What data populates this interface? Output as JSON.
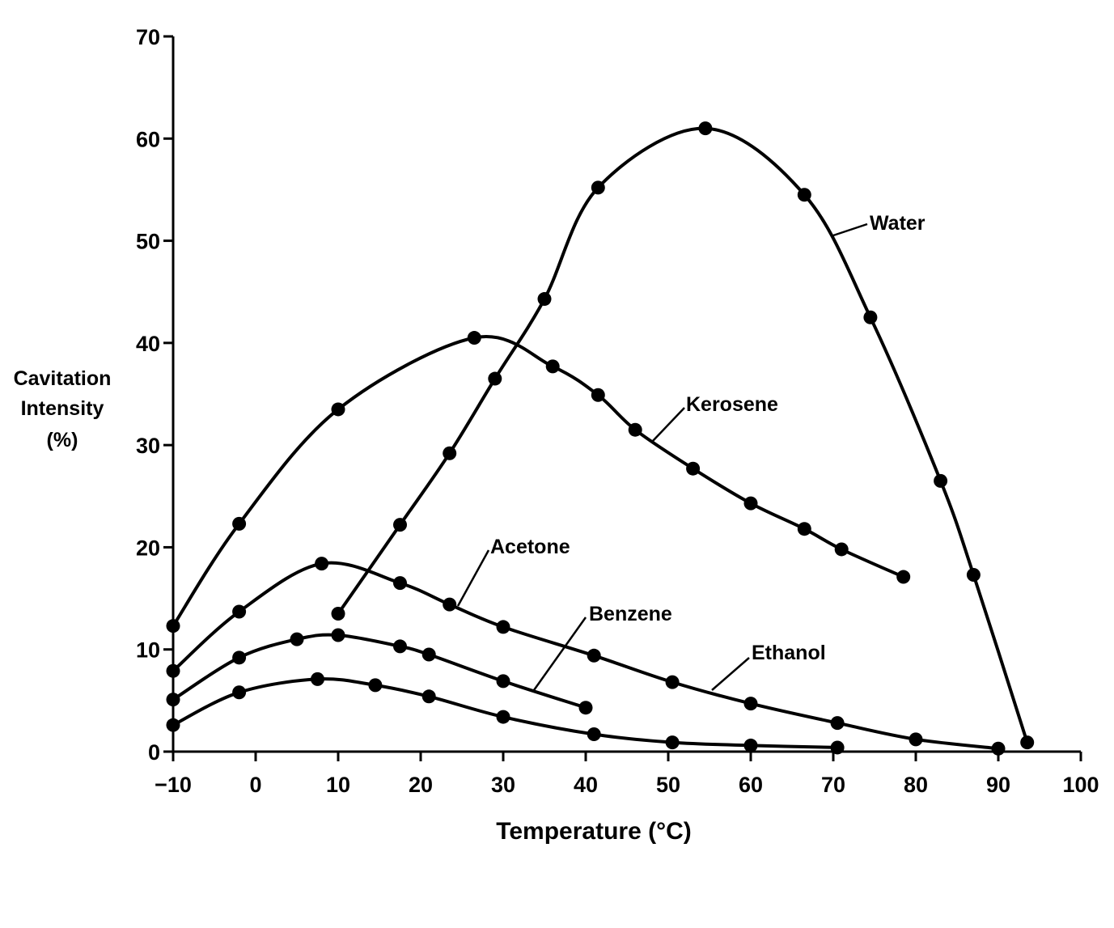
{
  "chart_data": {
    "type": "line",
    "title": "",
    "xlabel": "Temperature (°C)",
    "ylabel": [
      "Cavitation",
      "Intensity",
      "(%)"
    ],
    "xlim": [
      -10,
      100
    ],
    "ylim": [
      0,
      70
    ],
    "xticks": [
      "−10",
      "0",
      "10",
      "20",
      "30",
      "40",
      "50",
      "60",
      "70",
      "80",
      "90",
      "100"
    ],
    "yticks": [
      "0",
      "10",
      "20",
      "30",
      "40",
      "50",
      "60",
      "70"
    ],
    "grid": false,
    "legend": "none (series labeled directly on curves)",
    "color": "#000000",
    "series": [
      {
        "name": "Water",
        "points": [
          [
            10,
            13.5
          ],
          [
            17.5,
            22.2
          ],
          [
            23.5,
            29.2
          ],
          [
            29,
            36.5
          ],
          [
            35,
            44.3
          ],
          [
            41.5,
            55.2
          ],
          [
            54.5,
            61.0
          ],
          [
            66.5,
            54.5
          ],
          [
            74.5,
            42.5
          ],
          [
            83,
            26.5
          ],
          [
            87,
            17.3
          ],
          [
            93.5,
            0.9
          ]
        ]
      },
      {
        "name": "Kerosene",
        "points": [
          [
            -10,
            12.3
          ],
          [
            -2,
            22.3
          ],
          [
            10,
            33.5
          ],
          [
            26.5,
            40.5
          ],
          [
            36,
            37.7
          ],
          [
            41.5,
            34.9
          ],
          [
            46,
            31.5
          ],
          [
            53,
            27.7
          ],
          [
            60,
            24.3
          ],
          [
            66.5,
            21.8
          ],
          [
            71,
            19.8
          ],
          [
            78.5,
            17.1
          ]
        ]
      },
      {
        "name": "Acetone",
        "points": [
          [
            -10,
            7.9
          ],
          [
            -2,
            13.7
          ],
          [
            8,
            18.4
          ],
          [
            17.5,
            16.5
          ],
          [
            23.5,
            14.4
          ],
          [
            30,
            12.2
          ],
          [
            41,
            9.4
          ],
          [
            50.5,
            6.8
          ],
          [
            60,
            4.7
          ],
          [
            70.5,
            2.8
          ],
          [
            80,
            1.2
          ],
          [
            90,
            0.3
          ]
        ]
      },
      {
        "name": "Benzene",
        "points": [
          [
            -10,
            5.1
          ],
          [
            -2,
            9.2
          ],
          [
            5,
            11.0
          ],
          [
            10,
            11.4
          ],
          [
            17.5,
            10.3
          ],
          [
            21,
            9.5
          ],
          [
            30,
            6.9
          ],
          [
            40,
            4.3
          ]
        ]
      },
      {
        "name": "Ethanol",
        "points": [
          [
            -10,
            2.6
          ],
          [
            -2,
            5.8
          ],
          [
            7.5,
            7.1
          ],
          [
            14.5,
            6.5
          ],
          [
            21,
            5.4
          ],
          [
            30,
            3.4
          ],
          [
            41,
            1.7
          ],
          [
            50.5,
            0.9
          ],
          [
            60,
            0.6
          ],
          [
            70.5,
            0.4
          ]
        ]
      }
    ]
  }
}
